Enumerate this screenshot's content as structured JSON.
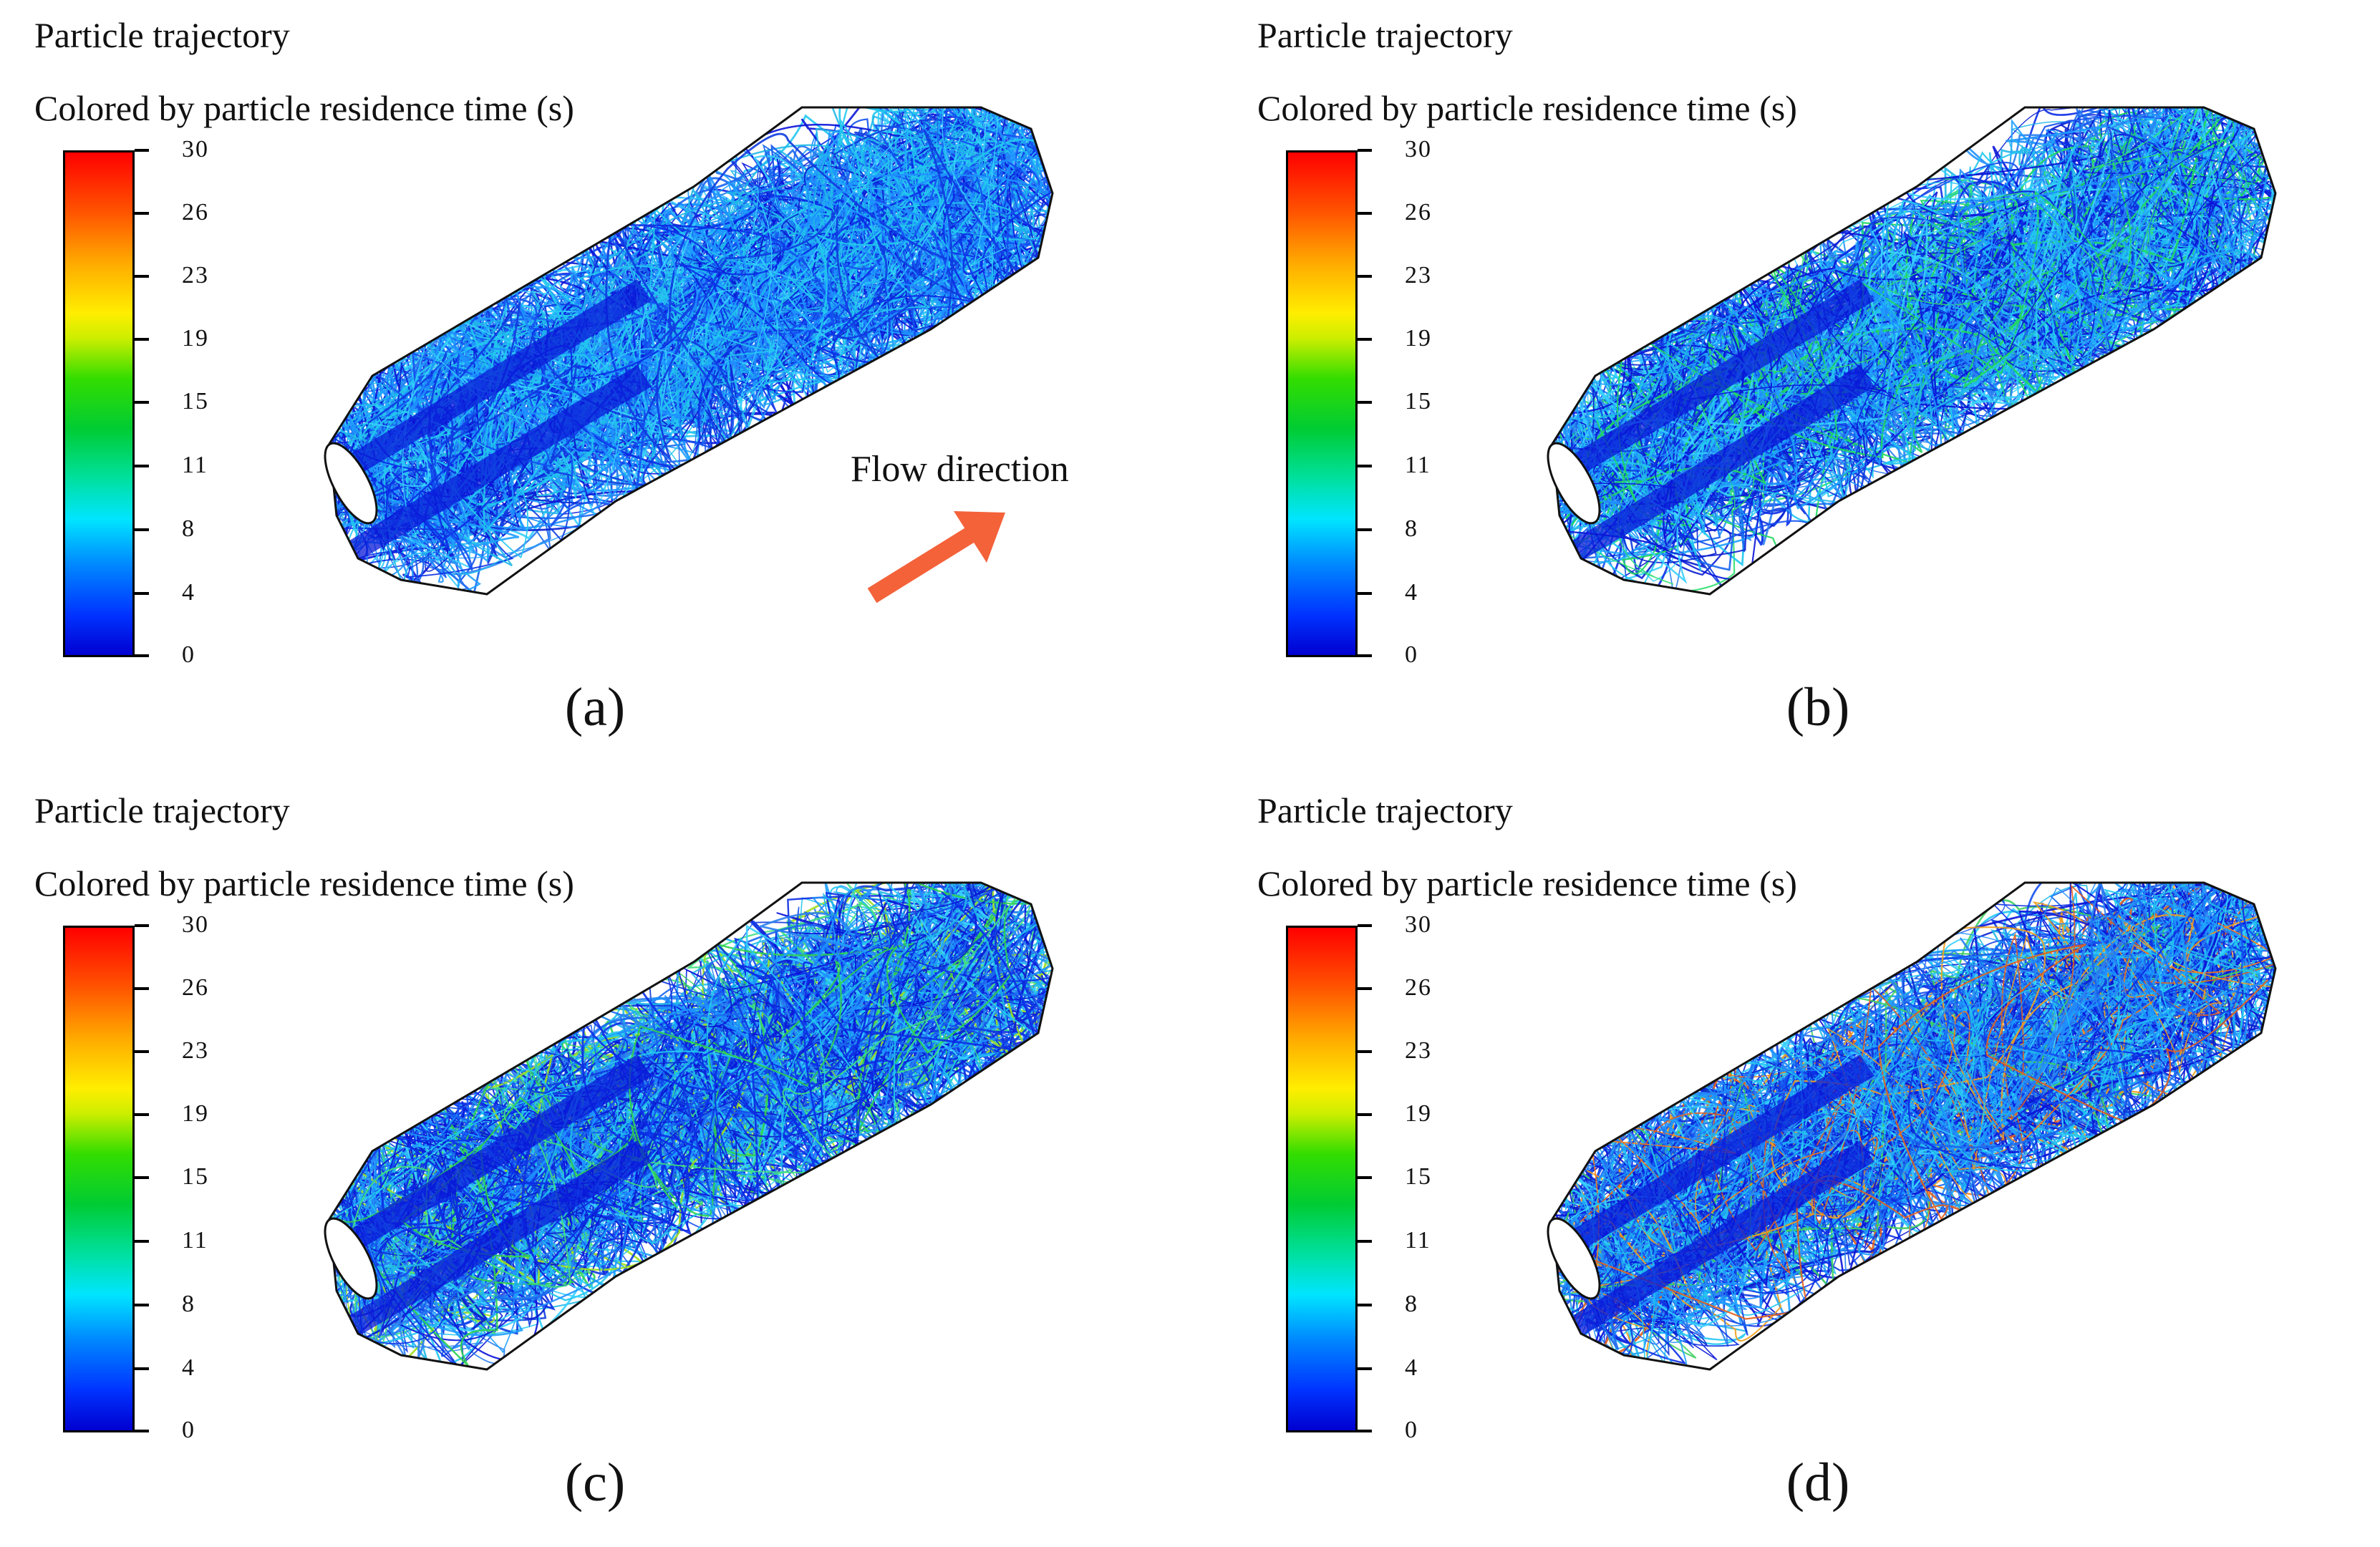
{
  "panels": [
    {
      "id": "a",
      "title": "Particle trajectory",
      "subtitle": "Colored by particle residence time (s)",
      "caption": "(a)",
      "ticks": [
        "30",
        "26",
        "23",
        "19",
        "15",
        "11",
        "8",
        "4",
        "0"
      ]
    },
    {
      "id": "b",
      "title": "Particle trajectory",
      "subtitle": "Colored by particle residence time (s)",
      "caption": "(b)",
      "ticks": [
        "30",
        "26",
        "23",
        "19",
        "15",
        "11",
        "8",
        "4",
        "0"
      ]
    },
    {
      "id": "c",
      "title": "Particle trajectory",
      "subtitle": "Colored by particle residence time (s)",
      "caption": "(c)",
      "ticks": [
        "30",
        "26",
        "23",
        "19",
        "15",
        "11",
        "8",
        "4",
        "0"
      ]
    },
    {
      "id": "d",
      "title": "Particle trajectory",
      "subtitle": "Colored by particle residence time (s)",
      "caption": "(d)",
      "ticks": [
        "30",
        "26",
        "23",
        "19",
        "15",
        "11",
        "8",
        "4",
        "0"
      ]
    }
  ],
  "annotation": {
    "flow_label": "Flow direction",
    "arrow_color": "#f4623a"
  },
  "colorbar": {
    "min": 0,
    "max": 30,
    "colors": [
      "#0000d0",
      "#0088ff",
      "#00e5ff",
      "#00cc33",
      "#ffee00",
      "#ffaa00",
      "#ff0000"
    ]
  }
}
